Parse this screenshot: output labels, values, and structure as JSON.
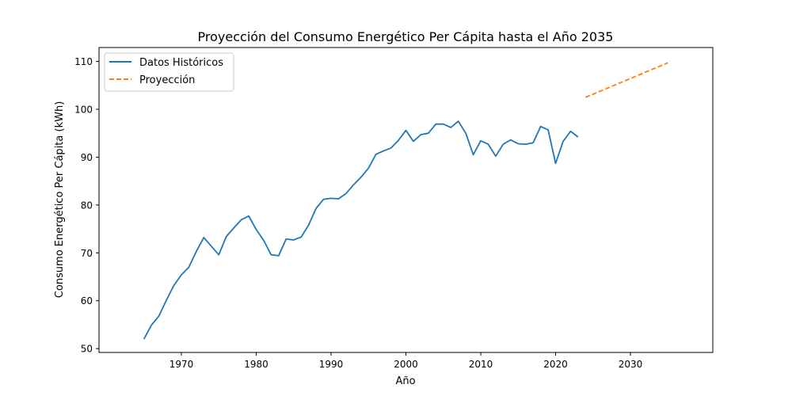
{
  "chart_data": {
    "type": "line",
    "title": "Proyección del Consumo Energético Per Cápita hasta el Año 2035",
    "xlabel": "Año",
    "ylabel": "Consumo Energético Per Cápita (kWh)",
    "xlim": [
      1959,
      2041
    ],
    "ylim": [
      49.2,
      112.9
    ],
    "xticks": [
      1970,
      1980,
      1990,
      2000,
      2010,
      2020,
      2030
    ],
    "yticks": [
      50,
      60,
      70,
      80,
      90,
      100,
      110
    ],
    "grid": false,
    "legend_position": "upper-left",
    "series": [
      {
        "name": "Datos Históricos",
        "color": "#1f77b4",
        "style": "solid",
        "x": [
          1965,
          1966,
          1967,
          1968,
          1969,
          1970,
          1971,
          1972,
          1973,
          1974,
          1975,
          1976,
          1977,
          1978,
          1979,
          1980,
          1981,
          1982,
          1983,
          1984,
          1985,
          1986,
          1987,
          1988,
          1989,
          1990,
          1991,
          1992,
          1993,
          1994,
          1995,
          1996,
          1997,
          1998,
          1999,
          2000,
          2001,
          2002,
          2003,
          2004,
          2005,
          2006,
          2007,
          2008,
          2009,
          2010,
          2011,
          2012,
          2013,
          2014,
          2015,
          2016,
          2017,
          2018,
          2019,
          2020,
          2021,
          2022,
          2023
        ],
        "y": [
          52.0,
          54.9,
          56.8,
          60.1,
          63.2,
          65.4,
          67.0,
          70.3,
          73.2,
          71.4,
          69.6,
          73.4,
          75.2,
          76.9,
          77.7,
          74.9,
          72.6,
          69.6,
          69.4,
          72.9,
          72.7,
          73.3,
          75.8,
          79.3,
          81.2,
          81.4,
          81.3,
          82.4,
          84.2,
          85.8,
          87.7,
          90.6,
          91.3,
          91.9,
          93.5,
          95.6,
          93.3,
          94.7,
          95.0,
          96.9,
          96.9,
          96.2,
          97.5,
          95.0,
          90.5,
          93.4,
          92.7,
          90.2,
          92.7,
          93.6,
          92.8,
          92.7,
          93.0,
          96.4,
          95.7,
          88.7,
          93.3,
          95.4,
          94.2
        ]
      },
      {
        "name": "Proyección",
        "color": "#ff7f0e",
        "style": "dashed",
        "x": [
          2024,
          2035
        ],
        "y": [
          102.5,
          109.7
        ]
      }
    ]
  }
}
